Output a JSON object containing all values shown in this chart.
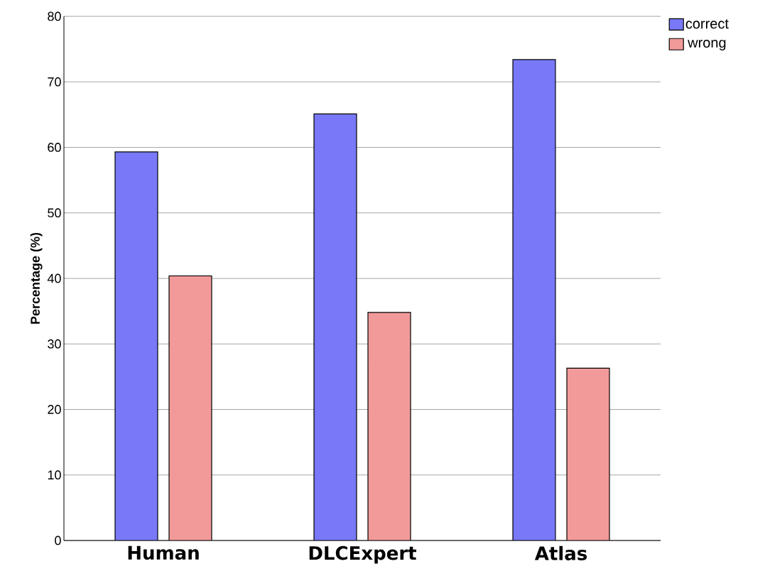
{
  "chart_data": {
    "type": "bar",
    "ylabel": "Percentage (%)",
    "categories": [
      "Human",
      "DLCExpert",
      "Atlas"
    ],
    "series": [
      {
        "name": "correct",
        "color": "#7878f8",
        "values": [
          59.3,
          65.1,
          73.4
        ]
      },
      {
        "name": "wrong",
        "color": "#f29a9a",
        "values": [
          40.4,
          34.8,
          26.3
        ]
      }
    ],
    "ylim": [
      0,
      80
    ],
    "yticks": [
      0,
      10,
      20,
      30,
      40,
      50,
      60,
      70,
      80
    ],
    "grid": "y",
    "legend": "top right"
  }
}
